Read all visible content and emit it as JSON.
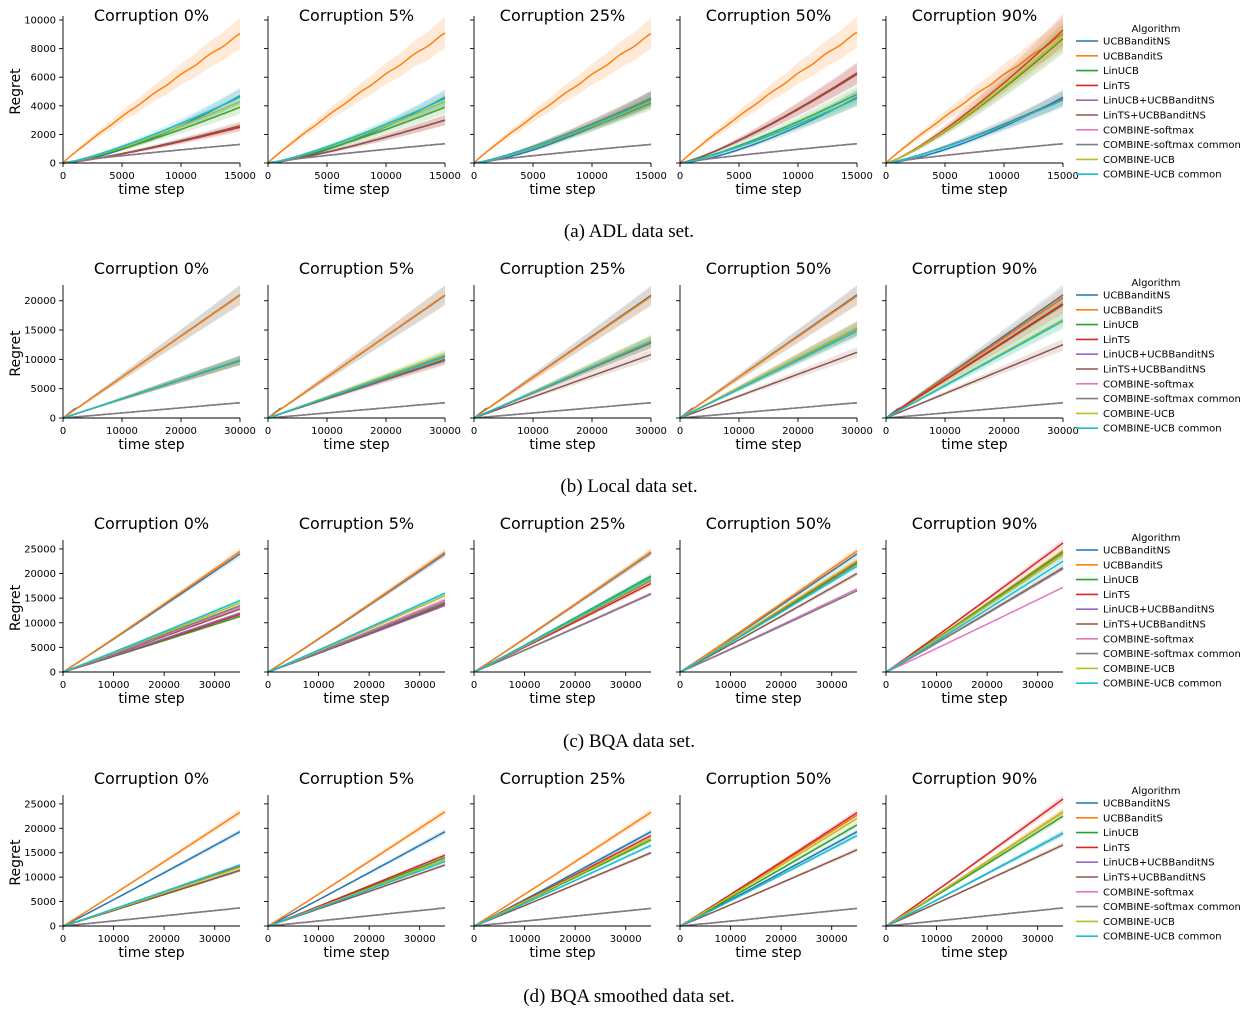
{
  "colors": [
    "#1f77b4",
    "#ff7f0e",
    "#2ca02c",
    "#d62728",
    "#9467bd",
    "#8c564b",
    "#e377c2",
    "#7f7f7f",
    "#bcbd22",
    "#17becf"
  ],
  "algorithms": [
    "UCBBanditNS",
    "UCBBanditS",
    "LinUCB",
    "LinTS",
    "LinUCB+UCBBanditNS",
    "LinTS+UCBBanditNS",
    "COMBINE-softmax",
    "COMBINE-softmax common",
    "COMBINE-UCB",
    "COMBINE-UCB common"
  ],
  "legend_title": "Algorithm",
  "xlabel": "time step",
  "ylabel": "Regret",
  "chart_data": [
    {
      "type": "line",
      "caption": "(a) ADL data set.",
      "xlim": [
        0,
        15000
      ],
      "xticks": [
        0,
        5000,
        10000,
        15000
      ],
      "ylim": [
        0,
        10000
      ],
      "yticks": [
        0,
        2000,
        4000,
        6000,
        8000,
        10000
      ],
      "band": 0.12,
      "panels": [
        {
          "title": "Corruption 0%",
          "final": [
            4700,
            9000,
            3900,
            2500,
            1300,
            2600,
            1300,
            1300,
            4300,
            4600
          ]
        },
        {
          "title": "Corruption 5%",
          "final": [
            4600,
            9050,
            3900,
            3000,
            1350,
            3000,
            1350,
            1350,
            4300,
            4500
          ]
        },
        {
          "title": "Corruption 25%",
          "final": [
            4500,
            9000,
            4200,
            4500,
            1300,
            4500,
            1300,
            1300,
            4300,
            4400
          ]
        },
        {
          "title": "Corruption 50%",
          "final": [
            4600,
            9100,
            4800,
            6300,
            1350,
            6200,
            1350,
            1350,
            4500,
            4500
          ]
        },
        {
          "title": "Corruption 90%",
          "final": [
            4600,
            9000,
            8700,
            9300,
            1350,
            4500,
            1350,
            1350,
            8900,
            4400
          ]
        }
      ]
    },
    {
      "type": "line",
      "caption": "(b) Local data set.",
      "xlim": [
        0,
        30000
      ],
      "xticks": [
        0,
        10000,
        20000,
        30000
      ],
      "ylim": [
        0,
        22000
      ],
      "yticks": [
        0,
        5000,
        10000,
        15000,
        20000
      ],
      "band": 0.08,
      "panels": [
        {
          "title": "Corruption 0%",
          "final": [
            21000,
            20900,
            9800,
            9800,
            2600,
            9800,
            2600,
            2600,
            9900,
            9900
          ]
        },
        {
          "title": "Corruption 5%",
          "final": [
            20900,
            21000,
            10500,
            10000,
            2600,
            9800,
            2600,
            2600,
            10800,
            10400
          ]
        },
        {
          "title": "Corruption 25%",
          "final": [
            20900,
            20700,
            13000,
            12800,
            2600,
            10800,
            2600,
            2600,
            13200,
            13000
          ]
        },
        {
          "title": "Corruption 50%",
          "final": [
            21000,
            20800,
            15200,
            15300,
            2600,
            11200,
            2600,
            2600,
            15300,
            14800
          ]
        },
        {
          "title": "Corruption 90%",
          "final": [
            21000,
            20500,
            19300,
            19500,
            2600,
            12500,
            2600,
            2600,
            16800,
            16500
          ]
        }
      ]
    },
    {
      "type": "line",
      "caption": "(c) BQA data set.",
      "xlim": [
        0,
        35000
      ],
      "xticks": [
        0,
        10000,
        20000,
        30000
      ],
      "ylim": [
        0,
        26000
      ],
      "yticks": [
        0,
        5000,
        10000,
        15000,
        20000,
        25000
      ],
      "band": 0.03,
      "panels": [
        {
          "title": "Corruption 0%",
          "final": [
            24000,
            24500,
            11300,
            11700,
            12000,
            12800,
            13200,
            13500,
            14000,
            14500
          ]
        },
        {
          "title": "Corruption 5%",
          "final": [
            24000,
            24300,
            14000,
            14600,
            13500,
            13800,
            14600,
            14200,
            15500,
            16000
          ]
        },
        {
          "title": "Corruption 25%",
          "final": [
            24200,
            24400,
            19500,
            18000,
            15800,
            18600,
            16000,
            15800,
            18800,
            19200
          ]
        },
        {
          "title": "Corruption 50%",
          "final": [
            24000,
            24600,
            22000,
            22400,
            16500,
            20000,
            16900,
            16500,
            22600,
            21500
          ]
        },
        {
          "title": "Corruption 90%",
          "final": [
            23800,
            24600,
            24300,
            26200,
            21000,
            21200,
            17200,
            21000,
            23800,
            22500
          ]
        }
      ]
    },
    {
      "type": "line",
      "caption": "(d) BQA smoothed data set.",
      "xlim": [
        0,
        35000
      ],
      "xticks": [
        0,
        10000,
        20000,
        30000
      ],
      "ylim": [
        0,
        26000
      ],
      "yticks": [
        0,
        5000,
        10000,
        15000,
        20000,
        25000
      ],
      "band": 0.03,
      "panels": [
        {
          "title": "Corruption 0%",
          "final": [
            19300,
            23300,
            11400,
            12200,
            3700,
            11400,
            3700,
            3700,
            12000,
            12500
          ]
        },
        {
          "title": "Corruption 5%",
          "final": [
            19300,
            23400,
            14000,
            14500,
            3700,
            12500,
            3700,
            3700,
            13600,
            13200
          ]
        },
        {
          "title": "Corruption 25%",
          "final": [
            19300,
            23300,
            17600,
            18500,
            3600,
            15000,
            3600,
            3600,
            18000,
            16500
          ]
        },
        {
          "title": "Corruption 50%",
          "final": [
            19300,
            22700,
            20700,
            23200,
            3600,
            15600,
            3600,
            3600,
            22000,
            18500
          ]
        },
        {
          "title": "Corruption 90%",
          "final": [
            19000,
            23400,
            22500,
            26000,
            3700,
            16600,
            3700,
            3700,
            23300,
            19000
          ]
        }
      ]
    }
  ]
}
